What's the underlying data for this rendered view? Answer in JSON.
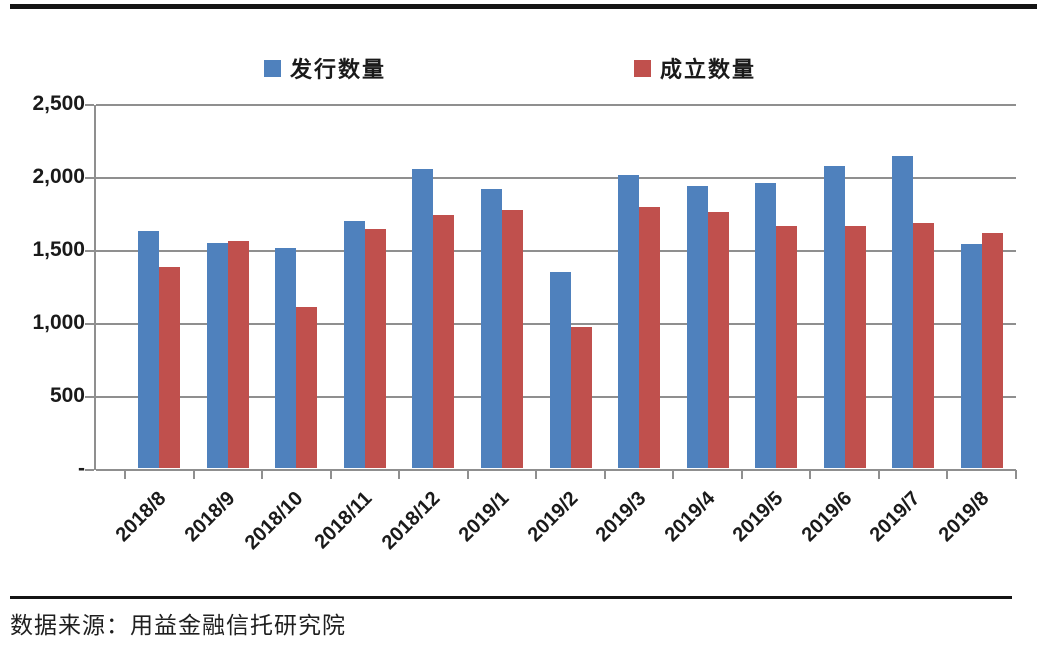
{
  "legend": {
    "issued_label": "发行数量",
    "established_label": "成立数量"
  },
  "footer": {
    "source": "数据来源：用益金融信托研究院"
  },
  "colors": {
    "issued": "#4F81BD",
    "established": "#C0504D",
    "grid": "#8f8f8f"
  },
  "chart_data": {
    "type": "bar",
    "title": "",
    "xlabel": "",
    "ylabel": "",
    "categories": [
      "2018/8",
      "2018/9",
      "2018/10",
      "2018/11",
      "2018/12",
      "2019/1",
      "2019/2",
      "2019/3",
      "2019/4",
      "2019/5",
      "2019/6",
      "2019/7",
      "2019/8"
    ],
    "series": [
      {
        "name": "发行数量",
        "color": "#4F81BD",
        "values": [
          1625,
          1540,
          1505,
          1695,
          2050,
          1910,
          1340,
          2010,
          1935,
          1955,
          2070,
          2135,
          1535
        ]
      },
      {
        "name": "成立数量",
        "color": "#C0504D",
        "values": [
          1380,
          1555,
          1105,
          1640,
          1735,
          1765,
          965,
          1790,
          1755,
          1655,
          1660,
          1680,
          1610
        ]
      }
    ],
    "ylim": [
      0,
      2500
    ],
    "yticks": [
      {
        "value": 0,
        "label": "-"
      },
      {
        "value": 500,
        "label": "500"
      },
      {
        "value": 1000,
        "label": "1,000"
      },
      {
        "value": 1500,
        "label": "1,500"
      },
      {
        "value": 2000,
        "label": "2,000"
      },
      {
        "value": 2500,
        "label": "2,500"
      }
    ],
    "grid": true,
    "legend_position": "top"
  }
}
